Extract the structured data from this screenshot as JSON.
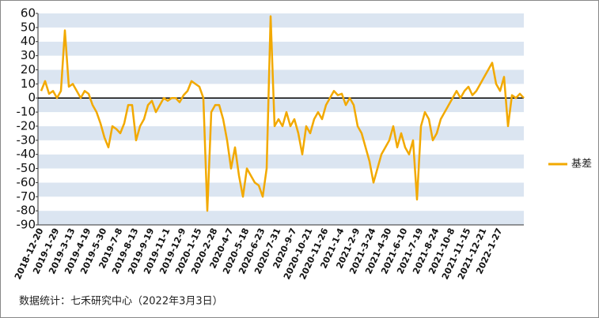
{
  "chart_data": {
    "type": "line",
    "categories": [
      "2018-12-20",
      null,
      null,
      null,
      "2019-1-29",
      null,
      null,
      null,
      "2019-3-13",
      null,
      null,
      null,
      "2019-4-19",
      null,
      null,
      null,
      "2019-5-30",
      null,
      null,
      null,
      "2019-7-8",
      null,
      null,
      null,
      "2019-8-13",
      null,
      null,
      null,
      "2019-9-19",
      null,
      null,
      null,
      "2019-11-1",
      null,
      null,
      null,
      "2019-12-9",
      null,
      null,
      null,
      "2020-1-15",
      null,
      null,
      null,
      "2020-2-28",
      null,
      null,
      null,
      "2020-4-7",
      null,
      null,
      null,
      "2020-5-18",
      null,
      null,
      null,
      "2020-6-23",
      null,
      null,
      null,
      "2020-7-31",
      null,
      null,
      null,
      "2020-9-7",
      null,
      null,
      null,
      "2020-10-21",
      null,
      null,
      null,
      "2020-11-26",
      null,
      null,
      null,
      "2021-1-4",
      null,
      null,
      null,
      "2021-2-9",
      null,
      null,
      null,
      "2021-3-24",
      null,
      null,
      null,
      "2021-4-30",
      null,
      null,
      null,
      "2021-6-10",
      null,
      null,
      null,
      "2021-7-19",
      null,
      null,
      null,
      "2021-8-24",
      null,
      null,
      null,
      "2021-10-8",
      null,
      null,
      null,
      "2021-11-15",
      null,
      null,
      null,
      "2021-12-21",
      null,
      null,
      null,
      "2022-1-27",
      null,
      null,
      null,
      null,
      null,
      null
    ],
    "series": [
      {
        "name": "基差",
        "color": "#f2a900",
        "values": [
          5,
          12,
          3,
          5,
          0,
          5,
          48,
          8,
          10,
          5,
          0,
          5,
          3,
          -5,
          -10,
          -18,
          -28,
          -35,
          -20,
          -22,
          -25,
          -18,
          -5,
          -5,
          -30,
          -20,
          -15,
          -5,
          -2,
          -10,
          -5,
          0,
          -2,
          0,
          0,
          -3,
          2,
          5,
          12,
          10,
          8,
          0,
          -80,
          -10,
          -5,
          -5,
          -15,
          -30,
          -50,
          -35,
          -55,
          -70,
          -50,
          -55,
          -60,
          -62,
          -70,
          -50,
          58,
          -20,
          -15,
          -20,
          -10,
          -20,
          -15,
          -25,
          -40,
          -20,
          -25,
          -15,
          -10,
          -15,
          -5,
          0,
          5,
          2,
          3,
          -5,
          0,
          -5,
          -20,
          -25,
          -35,
          -45,
          -60,
          -50,
          -40,
          -35,
          -30,
          -20,
          -35,
          -25,
          -35,
          -40,
          -30,
          -72,
          -20,
          -10,
          -15,
          -30,
          -25,
          -15,
          -10,
          -5,
          0,
          5,
          0,
          5,
          8,
          2,
          5,
          10,
          15,
          20,
          25,
          10,
          5,
          15,
          -20,
          2,
          0,
          3,
          0
        ]
      }
    ],
    "ylim": [
      -90,
      60
    ],
    "yticks": [
      -90,
      -80,
      -70,
      -60,
      -50,
      -40,
      -30,
      -20,
      -10,
      0,
      10,
      20,
      30,
      40,
      50,
      60
    ],
    "legend": "right",
    "note": "数据统计：七禾研究中心（2022年3月3日）"
  }
}
